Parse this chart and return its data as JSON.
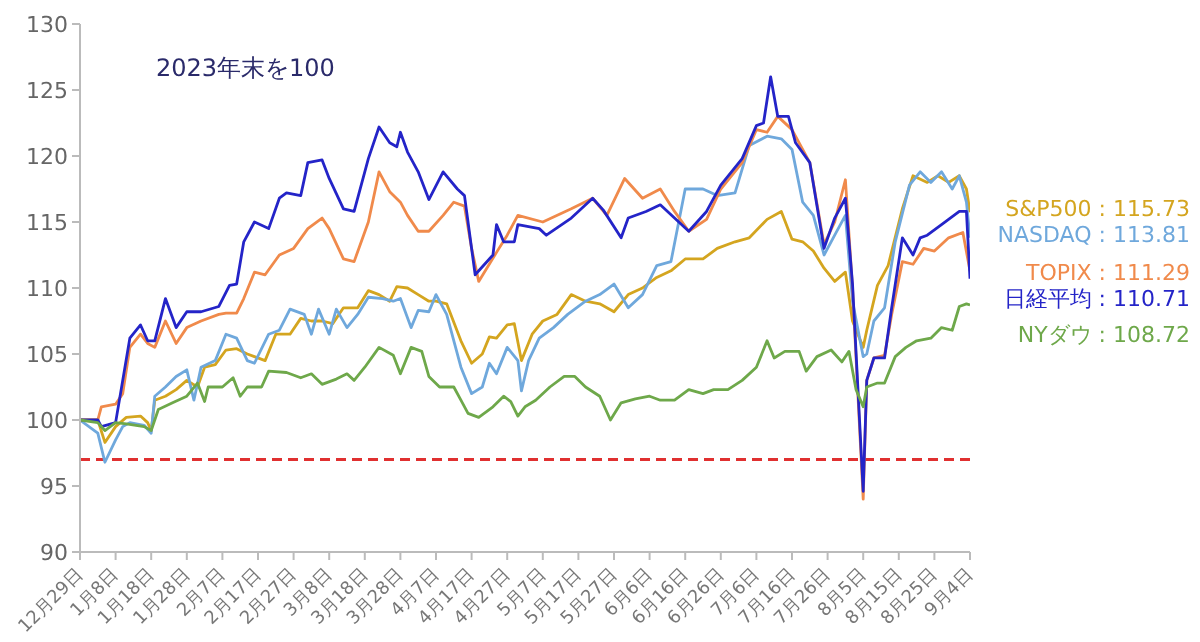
{
  "chart_data": {
    "type": "line",
    "title": "2023年末を100",
    "xlim": [
      "2023-12-29",
      "2024-09-04"
    ],
    "xticks": [
      {
        "value": "2023-12-29",
        "label": "12月29日"
      },
      {
        "value": "2024-01-08",
        "label": "1月8日"
      },
      {
        "value": "2024-01-18",
        "label": "1月18日"
      },
      {
        "value": "2024-01-28",
        "label": "1月28日"
      },
      {
        "value": "2024-02-07",
        "label": "2月7日"
      },
      {
        "value": "2024-02-17",
        "label": "2月17日"
      },
      {
        "value": "2024-02-27",
        "label": "2月27日"
      },
      {
        "value": "2024-03-08",
        "label": "3月8日"
      },
      {
        "value": "2024-03-18",
        "label": "3月18日"
      },
      {
        "value": "2024-03-28",
        "label": "3月28日"
      },
      {
        "value": "2024-04-07",
        "label": "4月7日"
      },
      {
        "value": "2024-04-17",
        "label": "4月17日"
      },
      {
        "value": "2024-04-27",
        "label": "4月27日"
      },
      {
        "value": "2024-05-07",
        "label": "5月7日"
      },
      {
        "value": "2024-05-17",
        "label": "5月17日"
      },
      {
        "value": "2024-05-27",
        "label": "5月27日"
      },
      {
        "value": "2024-06-06",
        "label": "6月6日"
      },
      {
        "value": "2024-06-16",
        "label": "6月16日"
      },
      {
        "value": "2024-06-26",
        "label": "6月26日"
      },
      {
        "value": "2024-07-06",
        "label": "7月6日"
      },
      {
        "value": "2024-07-16",
        "label": "7月16日"
      },
      {
        "value": "2024-07-26",
        "label": "7月26日"
      },
      {
        "value": "2024-08-05",
        "label": "8月5日"
      },
      {
        "value": "2024-08-15",
        "label": "8月15日"
      },
      {
        "value": "2024-08-25",
        "label": "8月25日"
      },
      {
        "value": "2024-09-04",
        "label": "9月4日"
      }
    ],
    "ylim": [
      90,
      130
    ],
    "yticks": [
      90,
      95,
      100,
      105,
      110,
      115,
      120,
      125,
      130
    ],
    "grid": false,
    "legend": false,
    "marker": "none",
    "line_style": "solid",
    "ref_lines": [
      {
        "axis": "y",
        "value": 97,
        "color": "#e03030",
        "line_style": "dashed"
      }
    ],
    "annotations": [
      " : 115.73",
      " : 113.81",
      " : 111.29",
      " : 110.71",
      " : 108.72"
    ],
    "series": [
      {
        "name": "S&P500",
        "color": "#d4a51f",
        "x": [
          "2023-12-29",
          "2024-01-03",
          "2024-01-05",
          "2024-01-08",
          "2024-01-11",
          "2024-01-15",
          "2024-01-17",
          "2024-01-18",
          "2024-01-19",
          "2024-01-22",
          "2024-01-25",
          "2024-01-28",
          "2024-01-31",
          "2024-02-02",
          "2024-02-05",
          "2024-02-08",
          "2024-02-11",
          "2024-02-14",
          "2024-02-16",
          "2024-02-19",
          "2024-02-22",
          "2024-02-26",
          "2024-02-29",
          "2024-03-03",
          "2024-03-06",
          "2024-03-09",
          "2024-03-12",
          "2024-03-16",
          "2024-03-19",
          "2024-03-22",
          "2024-03-25",
          "2024-03-27",
          "2024-03-30",
          "2024-04-02",
          "2024-04-05",
          "2024-04-07",
          "2024-04-10",
          "2024-04-14",
          "2024-04-17",
          "2024-04-20",
          "2024-04-22",
          "2024-04-24",
          "2024-04-27",
          "2024-04-29",
          "2024-05-01",
          "2024-05-04",
          "2024-05-07",
          "2024-05-11",
          "2024-05-15",
          "2024-05-19",
          "2024-05-23",
          "2024-05-27",
          "2024-05-31",
          "2024-06-04",
          "2024-06-08",
          "2024-06-12",
          "2024-06-16",
          "2024-06-21",
          "2024-06-25",
          "2024-06-30",
          "2024-07-04",
          "2024-07-09",
          "2024-07-13",
          "2024-07-16",
          "2024-07-19",
          "2024-07-22",
          "2024-07-25",
          "2024-07-28",
          "2024-07-31",
          "2024-08-02",
          "2024-08-05",
          "2024-08-06",
          "2024-08-09",
          "2024-08-12",
          "2024-08-16",
          "2024-08-19",
          "2024-08-23",
          "2024-08-26",
          "2024-08-29",
          "2024-09-01",
          "2024-09-03",
          "2024-09-04"
        ],
        "values": [
          100,
          100,
          98.3,
          99.5,
          100.2,
          100.3,
          99.8,
          99.2,
          101.5,
          101.8,
          102.3,
          103,
          102.5,
          104,
          104.2,
          105.3,
          105.4,
          105,
          104.8,
          104.5,
          106.5,
          106.5,
          107.7,
          107.5,
          107.5,
          107.3,
          108.5,
          108.5,
          109.8,
          109.5,
          109,
          110.1,
          110,
          109.5,
          109,
          109,
          108.8,
          106,
          104.3,
          105,
          106.3,
          106.2,
          107.2,
          107.3,
          104.5,
          106.5,
          107.5,
          108,
          109.5,
          109,
          108.8,
          108.2,
          109.5,
          110,
          110.8,
          111.3,
          112.2,
          112.2,
          113,
          113.5,
          113.8,
          115.2,
          115.8,
          113.7,
          113.5,
          112.8,
          111.5,
          110.5,
          111.2,
          107.5,
          105.5,
          106.8,
          110.2,
          111.7,
          116,
          118.5,
          118,
          118.5,
          118,
          118.5,
          117.5,
          115.73
        ]
      },
      {
        "name": "NASDAQ",
        "color": "#6fa8dc",
        "x": [
          "2023-12-29",
          "2024-01-03",
          "2024-01-05",
          "2024-01-08",
          "2024-01-10",
          "2024-01-12",
          "2024-01-16",
          "2024-01-18",
          "2024-01-19",
          "2024-01-22",
          "2024-01-25",
          "2024-01-28",
          "2024-01-30",
          "2024-02-01",
          "2024-02-05",
          "2024-02-08",
          "2024-02-11",
          "2024-02-14",
          "2024-02-16",
          "2024-02-20",
          "2024-02-23",
          "2024-02-26",
          "2024-03-01",
          "2024-03-03",
          "2024-03-05",
          "2024-03-08",
          "2024-03-10",
          "2024-03-13",
          "2024-03-16",
          "2024-03-19",
          "2024-03-23",
          "2024-03-26",
          "2024-03-28",
          "2024-03-31",
          "2024-04-02",
          "2024-04-05",
          "2024-04-07",
          "2024-04-10",
          "2024-04-14",
          "2024-04-17",
          "2024-04-20",
          "2024-04-22",
          "2024-04-24",
          "2024-04-27",
          "2024-04-30",
          "2024-05-01",
          "2024-05-03",
          "2024-05-06",
          "2024-05-10",
          "2024-05-14",
          "2024-05-19",
          "2024-05-23",
          "2024-05-27",
          "2024-05-31",
          "2024-06-04",
          "2024-06-08",
          "2024-06-12",
          "2024-06-16",
          "2024-06-21",
          "2024-06-25",
          "2024-06-30",
          "2024-07-04",
          "2024-07-09",
          "2024-07-13",
          "2024-07-16",
          "2024-07-19",
          "2024-07-22",
          "2024-07-25",
          "2024-07-28",
          "2024-07-31",
          "2024-08-02",
          "2024-08-05",
          "2024-08-06",
          "2024-08-08",
          "2024-08-11",
          "2024-08-14",
          "2024-08-18",
          "2024-08-21",
          "2024-08-24",
          "2024-08-27",
          "2024-08-30",
          "2024-09-01",
          "2024-09-03",
          "2024-09-04"
        ],
        "values": [
          100,
          99,
          96.8,
          98.5,
          99.5,
          99.8,
          99.6,
          99,
          101.8,
          102.5,
          103.3,
          103.8,
          101.5,
          104,
          104.5,
          106.5,
          106.2,
          104.5,
          104.3,
          106.5,
          106.8,
          108.4,
          108,
          106.5,
          108.4,
          106.5,
          108.4,
          107,
          108,
          109.3,
          109.2,
          109,
          109.2,
          107,
          108.3,
          108.2,
          109.5,
          108,
          104,
          102,
          102.5,
          104.3,
          103.5,
          105.5,
          104.5,
          102.2,
          104.5,
          106.2,
          107,
          108,
          109,
          109.5,
          110.3,
          108.5,
          109.5,
          111.7,
          112,
          117.5,
          117.5,
          117,
          117.2,
          120.8,
          121.5,
          121.3,
          120.5,
          116.5,
          115.5,
          112.5,
          114,
          115.5,
          109,
          104.8,
          105,
          107.5,
          108.5,
          113.5,
          117.8,
          118.8,
          118,
          118.8,
          117.5,
          118.5,
          116.5,
          113.81
        ]
      },
      {
        "name": "TOPIX",
        "color": "#f08a4b",
        "x": [
          "2023-12-29",
          "2024-01-03",
          "2024-01-04",
          "2024-01-08",
          "2024-01-10",
          "2024-01-12",
          "2024-01-15",
          "2024-01-17",
          "2024-01-19",
          "2024-01-22",
          "2024-01-25",
          "2024-01-28",
          "2024-02-01",
          "2024-02-06",
          "2024-02-08",
          "2024-02-11",
          "2024-02-13",
          "2024-02-16",
          "2024-02-19",
          "2024-02-23",
          "2024-02-27",
          "2024-03-02",
          "2024-03-06",
          "2024-03-08",
          "2024-03-12",
          "2024-03-15",
          "2024-03-19",
          "2024-03-22",
          "2024-03-25",
          "2024-03-28",
          "2024-03-30",
          "2024-04-02",
          "2024-04-05",
          "2024-04-09",
          "2024-04-12",
          "2024-04-15",
          "2024-04-17",
          "2024-04-19",
          "2024-04-24",
          "2024-04-27",
          "2024-04-30",
          "2024-05-07",
          "2024-05-15",
          "2024-05-21",
          "2024-05-25",
          "2024-05-30",
          "2024-06-04",
          "2024-06-09",
          "2024-06-13",
          "2024-06-17",
          "2024-06-22",
          "2024-06-26",
          "2024-07-02",
          "2024-07-06",
          "2024-07-09",
          "2024-07-12",
          "2024-07-16",
          "2024-07-21",
          "2024-07-25",
          "2024-07-28",
          "2024-07-31",
          "2024-08-02",
          "2024-08-05",
          "2024-08-06",
          "2024-08-08",
          "2024-08-11",
          "2024-08-13",
          "2024-08-16",
          "2024-08-19",
          "2024-08-22",
          "2024-08-25",
          "2024-08-29",
          "2024-09-02",
          "2024-09-04"
        ],
        "values": [
          100,
          100,
          101,
          101.2,
          102,
          105.5,
          106.5,
          105.8,
          105.5,
          107.5,
          105.8,
          107,
          107.5,
          108,
          108.1,
          108.1,
          109.2,
          111.2,
          111,
          112.5,
          113,
          114.5,
          115.3,
          114.5,
          112.2,
          112,
          115,
          118.8,
          117.3,
          116.5,
          115.5,
          114.3,
          114.3,
          115.5,
          116.5,
          116.2,
          113,
          110.5,
          112.7,
          114,
          115.5,
          115,
          116,
          116.8,
          115.5,
          118.3,
          116.8,
          117.5,
          115.8,
          114.3,
          115.2,
          117.5,
          119.5,
          122,
          121.8,
          123,
          122,
          119.5,
          113.3,
          115,
          118.2,
          110,
          94,
          103,
          104.7,
          104.9,
          108,
          112,
          111.8,
          113,
          112.8,
          113.8,
          114.2,
          111.29
        ]
      },
      {
        "name": "日経平均",
        "color": "#2424c8",
        "x": [
          "2023-12-29",
          "2024-01-03",
          "2024-01-04",
          "2024-01-08",
          "2024-01-12",
          "2024-01-15",
          "2024-01-17",
          "2024-01-19",
          "2024-01-22",
          "2024-01-25",
          "2024-01-28",
          "2024-02-01",
          "2024-02-06",
          "2024-02-09",
          "2024-02-11",
          "2024-02-13",
          "2024-02-16",
          "2024-02-20",
          "2024-02-23",
          "2024-02-25",
          "2024-02-29",
          "2024-03-02",
          "2024-03-06",
          "2024-03-08",
          "2024-03-12",
          "2024-03-15",
          "2024-03-19",
          "2024-03-22",
          "2024-03-25",
          "2024-03-27",
          "2024-03-28",
          "2024-03-30",
          "2024-04-02",
          "2024-04-05",
          "2024-04-09",
          "2024-04-13",
          "2024-04-15",
          "2024-04-18",
          "2024-04-23",
          "2024-04-24",
          "2024-04-26",
          "2024-04-29",
          "2024-04-30",
          "2024-05-06",
          "2024-05-08",
          "2024-05-15",
          "2024-05-21",
          "2024-05-24",
          "2024-05-29",
          "2024-05-31",
          "2024-06-05",
          "2024-06-09",
          "2024-06-17",
          "2024-06-22",
          "2024-06-26",
          "2024-07-02",
          "2024-07-06",
          "2024-07-08",
          "2024-07-10",
          "2024-07-12",
          "2024-07-15",
          "2024-07-17",
          "2024-07-21",
          "2024-07-25",
          "2024-07-28",
          "2024-07-31",
          "2024-08-02",
          "2024-08-05",
          "2024-08-06",
          "2024-08-08",
          "2024-08-11",
          "2024-08-13",
          "2024-08-16",
          "2024-08-19",
          "2024-08-21",
          "2024-08-23",
          "2024-08-27",
          "2024-09-01",
          "2024-09-03",
          "2024-09-04"
        ],
        "values": [
          100,
          100,
          99.5,
          99.8,
          106.2,
          107.2,
          106,
          106,
          109.2,
          107,
          108.2,
          108.2,
          108.6,
          110.2,
          110.3,
          113.5,
          115,
          114.5,
          116.8,
          117.2,
          117,
          119.5,
          119.7,
          118.3,
          116,
          115.8,
          119.8,
          122.2,
          121,
          120.7,
          121.8,
          120.3,
          118.8,
          116.7,
          118.8,
          117.5,
          117,
          111,
          112.5,
          114.8,
          113.5,
          113.5,
          114.8,
          114.5,
          114,
          115.3,
          116.8,
          115.9,
          113.8,
          115.3,
          115.8,
          116.3,
          114.3,
          115.8,
          117.8,
          119.8,
          122.3,
          122.5,
          126,
          123,
          123,
          121,
          119.5,
          113,
          115.3,
          116.8,
          110.3,
          94.6,
          103,
          104.7,
          104.7,
          108.5,
          113.8,
          112.5,
          113.8,
          114,
          114.8,
          115.8,
          115.8,
          110.71
        ]
      },
      {
        "name": "NYダウ",
        "color": "#6ea84a",
        "x": [
          "2023-12-29",
          "2024-01-03",
          "2024-01-05",
          "2024-01-08",
          "2024-01-11",
          "2024-01-16",
          "2024-01-18",
          "2024-01-20",
          "2024-01-24",
          "2024-01-28",
          "2024-01-31",
          "2024-02-02",
          "2024-02-03",
          "2024-02-07",
          "2024-02-10",
          "2024-02-12",
          "2024-02-14",
          "2024-02-18",
          "2024-02-20",
          "2024-02-25",
          "2024-02-29",
          "2024-03-03",
          "2024-03-06",
          "2024-03-10",
          "2024-03-13",
          "2024-03-15",
          "2024-03-18",
          "2024-03-22",
          "2024-03-26",
          "2024-03-28",
          "2024-03-31",
          "2024-04-03",
          "2024-04-05",
          "2024-04-08",
          "2024-04-12",
          "2024-04-14",
          "2024-04-16",
          "2024-04-19",
          "2024-04-23",
          "2024-04-26",
          "2024-04-28",
          "2024-04-30",
          "2024-05-02",
          "2024-05-05",
          "2024-05-09",
          "2024-05-13",
          "2024-05-16",
          "2024-05-19",
          "2024-05-23",
          "2024-05-26",
          "2024-05-29",
          "2024-06-02",
          "2024-06-06",
          "2024-06-09",
          "2024-06-13",
          "2024-06-17",
          "2024-06-21",
          "2024-06-24",
          "2024-06-28",
          "2024-07-02",
          "2024-07-06",
          "2024-07-09",
          "2024-07-11",
          "2024-07-14",
          "2024-07-18",
          "2024-07-20",
          "2024-07-23",
          "2024-07-27",
          "2024-07-30",
          "2024-08-01",
          "2024-08-03",
          "2024-08-05",
          "2024-08-06",
          "2024-08-09",
          "2024-08-11",
          "2024-08-14",
          "2024-08-17",
          "2024-08-20",
          "2024-08-24",
          "2024-08-27",
          "2024-08-30",
          "2024-09-01",
          "2024-09-03",
          "2024-09-04"
        ],
        "values": [
          100,
          99.8,
          99.2,
          99.8,
          99.7,
          99.5,
          99.2,
          100.8,
          101.3,
          101.8,
          102.8,
          101.4,
          102.5,
          102.5,
          103.2,
          101.8,
          102.5,
          102.5,
          103.7,
          103.6,
          103.2,
          103.5,
          102.7,
          103.1,
          103.5,
          103,
          104,
          105.5,
          104.9,
          103.5,
          105.5,
          105.2,
          103.3,
          102.5,
          102.5,
          101.5,
          100.5,
          100.2,
          101,
          101.8,
          101.4,
          100.3,
          101,
          101.5,
          102.5,
          103.3,
          103.3,
          102.5,
          101.8,
          100,
          101.3,
          101.6,
          101.8,
          101.5,
          101.5,
          102.3,
          102,
          102.3,
          102.3,
          103,
          104,
          106,
          104.7,
          105.2,
          105.2,
          103.7,
          104.8,
          105.3,
          104.4,
          105.2,
          102.3,
          101,
          102.5,
          102.8,
          102.8,
          104.8,
          105.5,
          106,
          106.2,
          107,
          106.8,
          108.6,
          108.8,
          108.72
        ]
      }
    ]
  }
}
